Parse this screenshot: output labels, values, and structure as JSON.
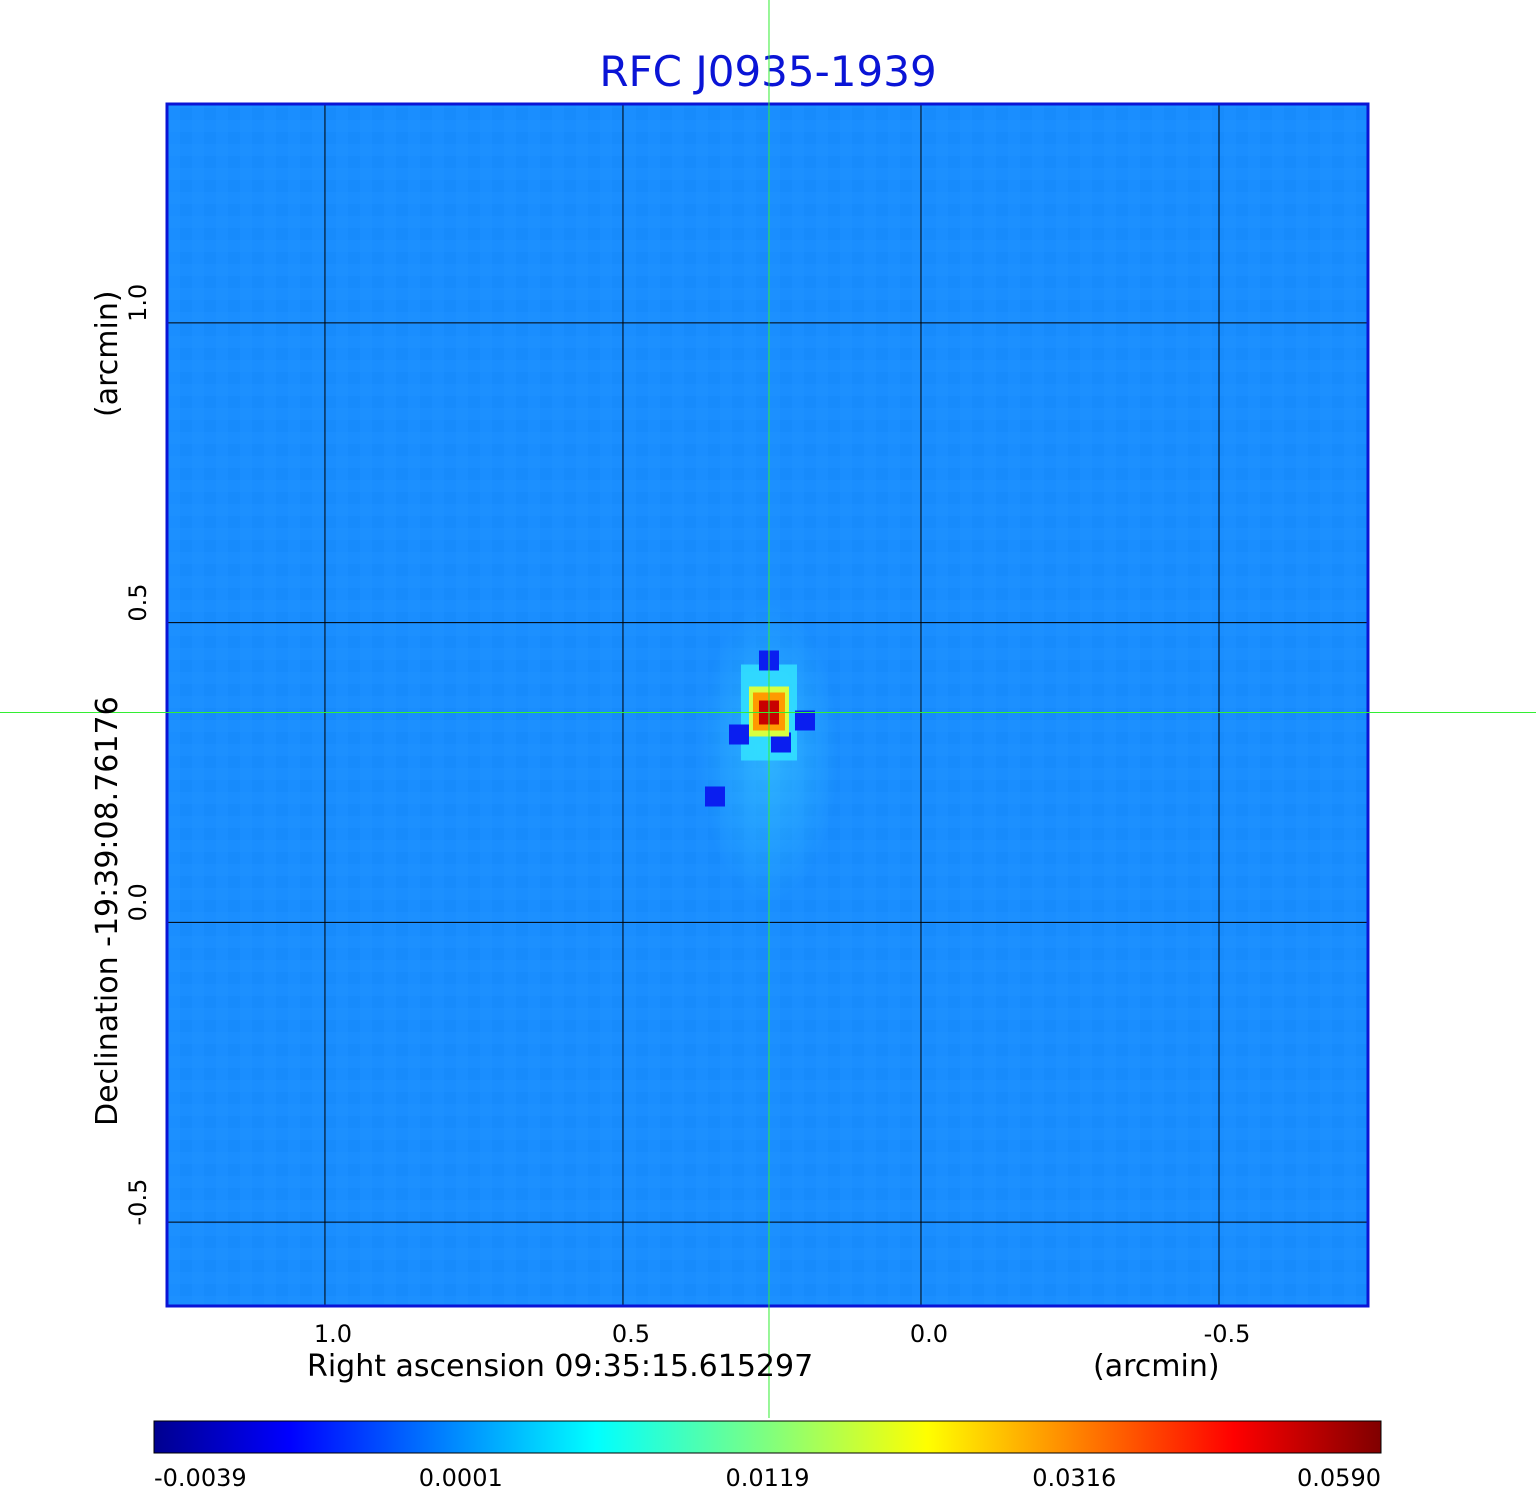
{
  "chart_data": {
    "type": "heatmap",
    "title": "RFC J0935-1939",
    "xlabel": "Right ascension  09:35:15.615297",
    "xunit": "(arcmin)",
    "ylabel": "Declination  -19:39:08.76176",
    "yunit": "(arcmin)",
    "x_ticks": [
      {
        "value": 1.0,
        "label": "1.0"
      },
      {
        "value": 0.5,
        "label": "0.5"
      },
      {
        "value": 0.0,
        "label": "0.0"
      },
      {
        "value": -0.5,
        "label": "-0.5"
      }
    ],
    "y_ticks": [
      {
        "value": 1.0,
        "label": "1.0"
      },
      {
        "value": 0.5,
        "label": "0.5"
      },
      {
        "value": 0.0,
        "label": "0.0"
      },
      {
        "value": -0.5,
        "label": "-0.5"
      }
    ],
    "xlim": [
      1.265,
      -0.75
    ],
    "ylim": [
      -0.64,
      1.365
    ],
    "grid": true,
    "crosshair": {
      "x": 0.255,
      "y": 0.35
    },
    "peak": {
      "x": 0.255,
      "y": 0.35,
      "value": 0.059
    },
    "colorbar": {
      "colormap": "jet",
      "ticks": [
        "-0.0039",
        "0.0001",
        "0.0119",
        "0.0316",
        "0.0590"
      ],
      "min": -0.0039,
      "max": 0.059
    },
    "colors": {
      "title": "#0a14d6",
      "frame": "#0a14d6",
      "background_map": "#1a8eff",
      "crosshair": "#33ee33",
      "grid": "#000000"
    }
  }
}
